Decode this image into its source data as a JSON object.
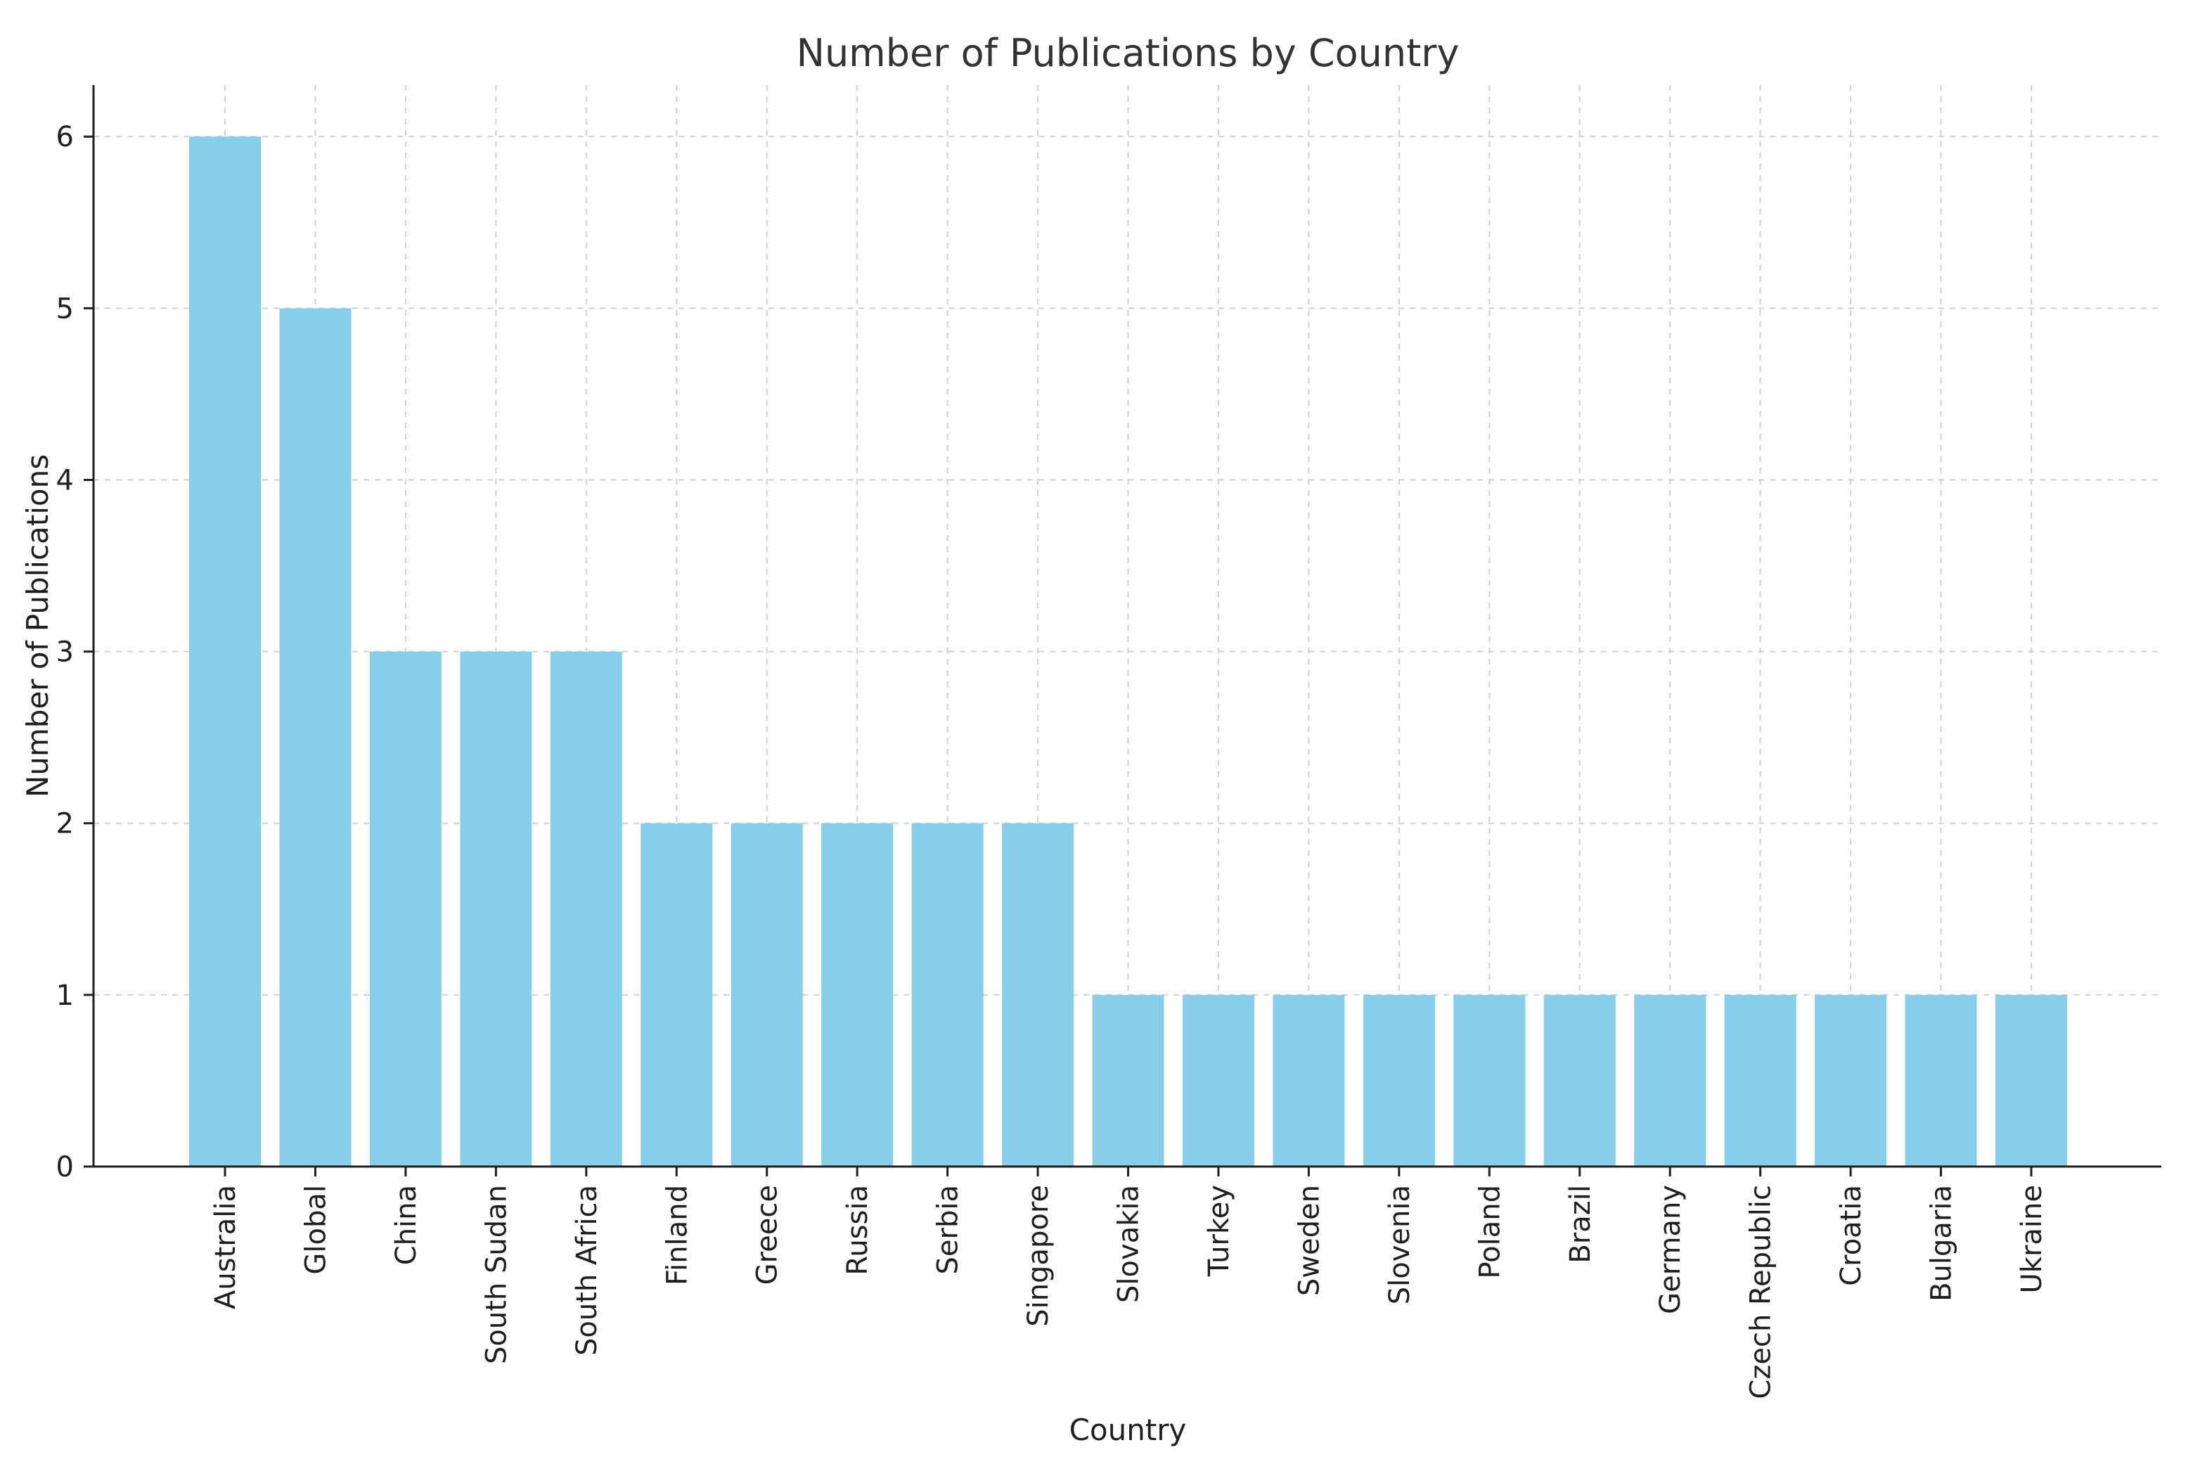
{
  "chart_data": {
    "type": "bar",
    "title": "Number of Publications by Country",
    "xlabel": "Country",
    "ylabel": "Number of Publications",
    "categories": [
      "Australia",
      "Global",
      "China",
      "South Sudan",
      "South Africa",
      "Finland",
      "Greece",
      "Russia",
      "Serbia",
      "Singapore",
      "Slovakia",
      "Turkey",
      "Sweden",
      "Slovenia",
      "Poland",
      "Brazil",
      "Germany",
      "Czech Republic",
      "Croatia",
      "Bulgaria",
      "Ukraine"
    ],
    "values": [
      6,
      5,
      3,
      3,
      3,
      2,
      2,
      2,
      2,
      2,
      1,
      1,
      1,
      1,
      1,
      1,
      1,
      1,
      1,
      1,
      1
    ],
    "ylim": [
      0,
      6.3
    ],
    "yticks": [
      0,
      1,
      2,
      3,
      4,
      5,
      6
    ],
    "grid": true,
    "legend": "none",
    "colors": {
      "bar": "#87CEEB",
      "grid": "#cfcfcf",
      "axis": "#1f1f1f",
      "title": "#333333"
    }
  }
}
